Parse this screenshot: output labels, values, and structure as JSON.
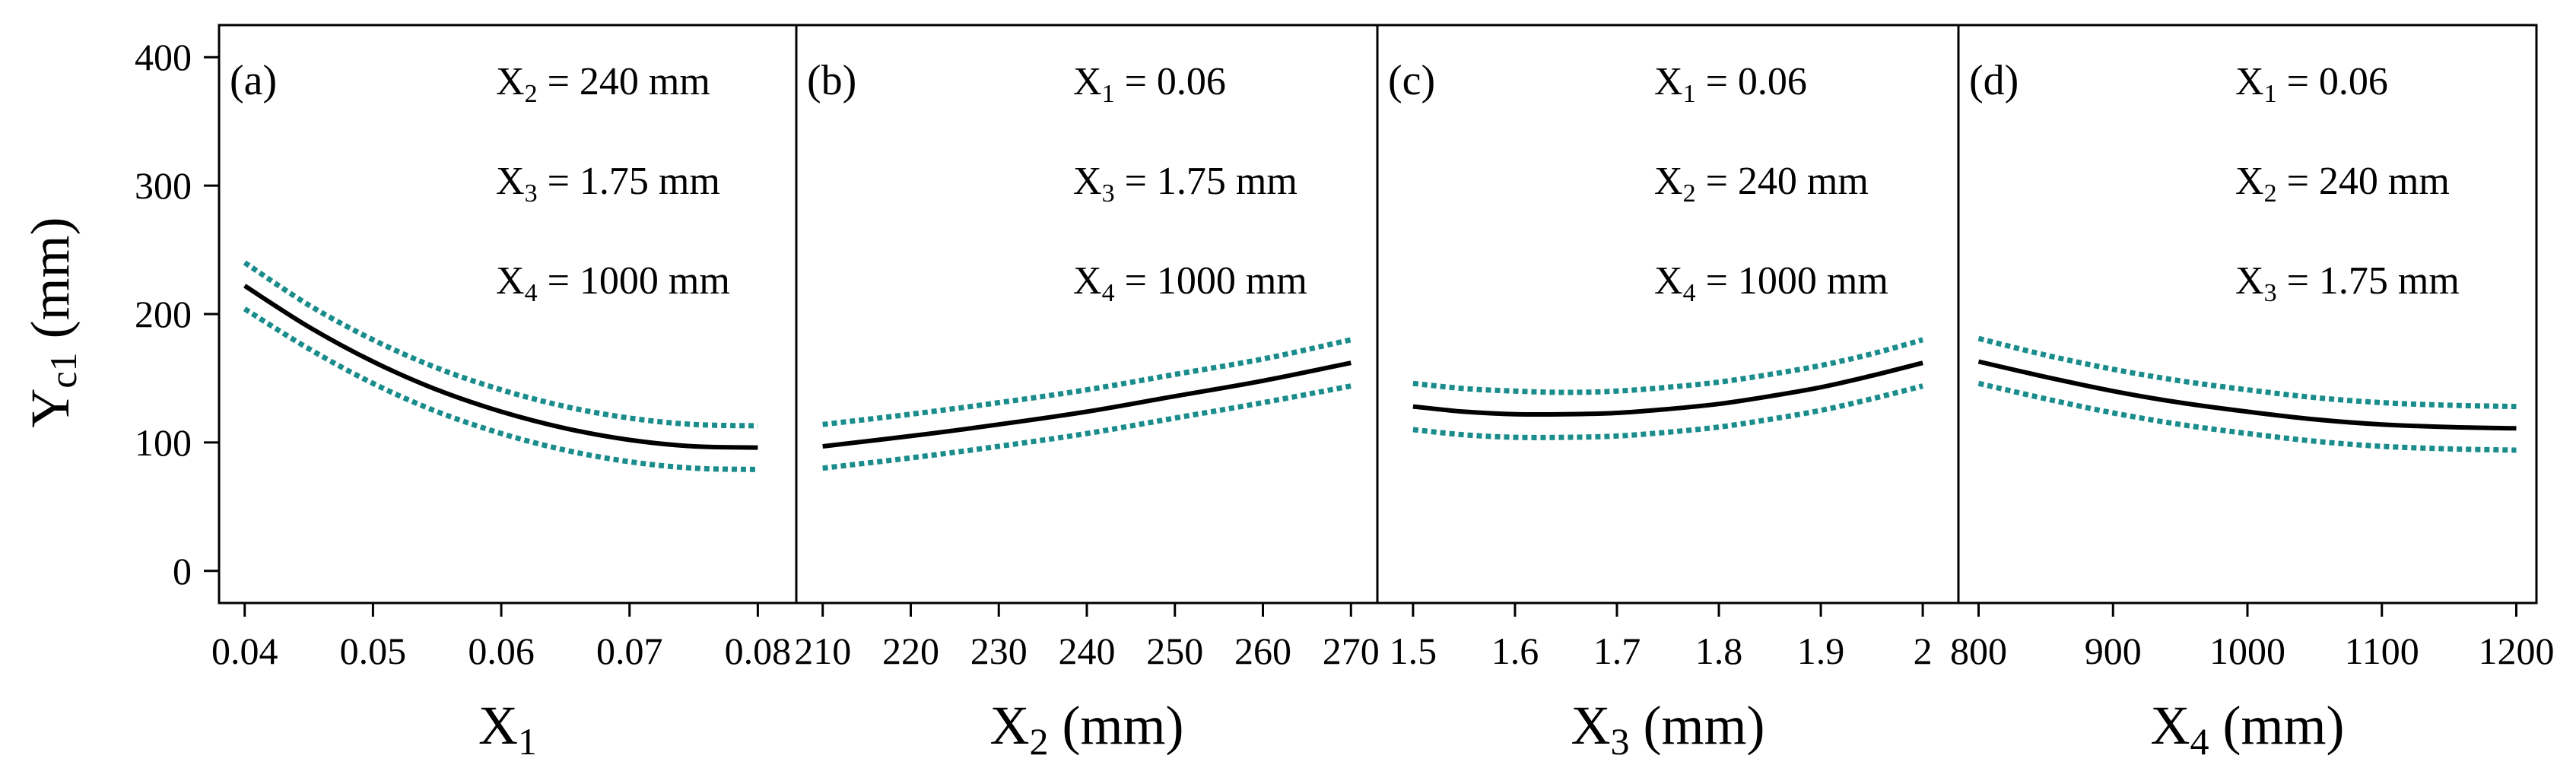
{
  "chart_data": [
    {
      "type": "line",
      "panel_label": "(a)",
      "xlabel": "X",
      "xlabel_sub": "1",
      "xlabel_unit": "",
      "ylabel": "Y",
      "ylabel_sub": "c1",
      "ylabel_unit": " (mm)",
      "xlim": [
        0.038,
        0.083
      ],
      "ylim": [
        -25,
        425
      ],
      "xticks": [
        0.04,
        0.05,
        0.06,
        0.07,
        0.08
      ],
      "xtick_labels": [
        "0.04",
        "0.05",
        "0.06",
        "0.07",
        "0.08"
      ],
      "yticks": [
        0,
        100,
        200,
        300,
        400
      ],
      "ytick_labels": [
        "0",
        "100",
        "200",
        "300",
        "400"
      ],
      "annotations": [
        {
          "var": "X",
          "sub": "2",
          "text": " = 240 mm"
        },
        {
          "var": "X",
          "sub": "3",
          "text": " = 1.75 mm"
        },
        {
          "var": "X",
          "sub": "4",
          "text": " = 1000 mm"
        }
      ],
      "series": [
        {
          "name": "predicted",
          "style": "solid",
          "color": "#000000",
          "x": [
            0.04,
            0.045,
            0.05,
            0.055,
            0.06,
            0.065,
            0.07,
            0.075,
            0.08
          ],
          "y": [
            222,
            190,
            163,
            141,
            124,
            111,
            102,
            97,
            96
          ]
        },
        {
          "name": "upper bound",
          "style": "dotted",
          "color": "#1a8c8c",
          "x": [
            0.04,
            0.045,
            0.05,
            0.055,
            0.06,
            0.065,
            0.07,
            0.075,
            0.08
          ],
          "y": [
            240,
            207,
            180,
            158,
            141,
            128,
            119,
            114,
            113
          ]
        },
        {
          "name": "lower bound",
          "style": "dotted",
          "color": "#1a8c8c",
          "x": [
            0.04,
            0.045,
            0.05,
            0.055,
            0.06,
            0.065,
            0.07,
            0.075,
            0.08
          ],
          "y": [
            204,
            173,
            146,
            124,
            107,
            94,
            85,
            80,
            79
          ]
        }
      ]
    },
    {
      "type": "line",
      "panel_label": "(b)",
      "xlabel": "X",
      "xlabel_sub": "2",
      "xlabel_unit": " (mm)",
      "xlim": [
        207,
        273
      ],
      "ylim": [
        -25,
        425
      ],
      "xticks": [
        210,
        220,
        230,
        240,
        250,
        260,
        270
      ],
      "xtick_labels": [
        "210",
        "220",
        "230",
        "240",
        "250",
        "260",
        "270"
      ],
      "annotations": [
        {
          "var": "X",
          "sub": "1",
          "text": " = 0.06"
        },
        {
          "var": "X",
          "sub": "3",
          "text": " = 1.75 mm"
        },
        {
          "var": "X",
          "sub": "4",
          "text": " = 1000 mm"
        }
      ],
      "series": [
        {
          "name": "predicted",
          "style": "solid",
          "color": "#000000",
          "x": [
            210,
            220,
            230,
            240,
            250,
            260,
            270
          ],
          "y": [
            97,
            105,
            114,
            124,
            136,
            148,
            162
          ]
        },
        {
          "name": "upper bound",
          "style": "dotted",
          "color": "#1a8c8c",
          "x": [
            210,
            220,
            230,
            240,
            250,
            260,
            270
          ],
          "y": [
            114,
            122,
            131,
            141,
            153,
            165,
            180
          ]
        },
        {
          "name": "lower bound",
          "style": "dotted",
          "color": "#1a8c8c",
          "x": [
            210,
            220,
            230,
            240,
            250,
            260,
            270
          ],
          "y": [
            80,
            88,
            97,
            107,
            119,
            131,
            144
          ]
        }
      ]
    },
    {
      "type": "line",
      "panel_label": "(c)",
      "xlabel": "X",
      "xlabel_sub": "3",
      "xlabel_unit": " (mm)",
      "xlim": [
        1.465,
        2.035
      ],
      "ylim": [
        -25,
        425
      ],
      "xticks": [
        1.5,
        1.6,
        1.7,
        1.8,
        1.9,
        2.0
      ],
      "xtick_labels": [
        "1.5",
        "1.6",
        "1.7",
        "1.8",
        "1.9",
        "2"
      ],
      "annotations": [
        {
          "var": "X",
          "sub": "1",
          "text": " = 0.06"
        },
        {
          "var": "X",
          "sub": "2",
          "text": " = 240 mm"
        },
        {
          "var": "X",
          "sub": "4",
          "text": " = 1000 mm"
        }
      ],
      "series": [
        {
          "name": "predicted",
          "style": "solid",
          "color": "#000000",
          "x": [
            1.5,
            1.55,
            1.6,
            1.65,
            1.7,
            1.75,
            1.8,
            1.85,
            1.9,
            1.95,
            2.0
          ],
          "y": [
            128,
            124,
            122,
            122,
            123,
            126,
            130,
            136,
            143,
            152,
            162
          ]
        },
        {
          "name": "upper bound",
          "style": "dotted",
          "color": "#1a8c8c",
          "x": [
            1.5,
            1.55,
            1.6,
            1.65,
            1.7,
            1.75,
            1.8,
            1.85,
            1.9,
            1.95,
            2.0
          ],
          "y": [
            146,
            142,
            140,
            139,
            140,
            143,
            147,
            153,
            160,
            169,
            180
          ]
        },
        {
          "name": "lower bound",
          "style": "dotted",
          "color": "#1a8c8c",
          "x": [
            1.5,
            1.55,
            1.6,
            1.65,
            1.7,
            1.75,
            1.8,
            1.85,
            1.9,
            1.95,
            2.0
          ],
          "y": [
            110,
            106,
            104,
            104,
            105,
            108,
            112,
            118,
            125,
            134,
            144
          ]
        }
      ]
    },
    {
      "type": "line",
      "panel_label": "(d)",
      "xlabel": "X",
      "xlabel_sub": "4",
      "xlabel_unit": " (mm)",
      "xlim": [
        785,
        1215
      ],
      "ylim": [
        -25,
        425
      ],
      "xticks": [
        800,
        900,
        1000,
        1100,
        1200
      ],
      "xtick_labels": [
        "800",
        "900",
        "1000",
        "1100",
        "1200"
      ],
      "annotations": [
        {
          "var": "X",
          "sub": "1",
          "text": " = 0.06"
        },
        {
          "var": "X",
          "sub": "2",
          "text": " = 240 mm"
        },
        {
          "var": "X",
          "sub": "3",
          "text": " = 1.75 mm"
        }
      ],
      "series": [
        {
          "name": "predicted",
          "style": "solid",
          "color": "#000000",
          "x": [
            800,
            850,
            900,
            950,
            1000,
            1050,
            1100,
            1150,
            1200
          ],
          "y": [
            163,
            151,
            140,
            131,
            124,
            118,
            114,
            112,
            111
          ]
        },
        {
          "name": "upper bound",
          "style": "dotted",
          "color": "#1a8c8c",
          "x": [
            800,
            850,
            900,
            950,
            1000,
            1050,
            1100,
            1150,
            1200
          ],
          "y": [
            181,
            168,
            157,
            148,
            141,
            135,
            131,
            129,
            128
          ]
        },
        {
          "name": "lower bound",
          "style": "dotted",
          "color": "#1a8c8c",
          "x": [
            800,
            850,
            900,
            950,
            1000,
            1050,
            1100,
            1150,
            1200
          ],
          "y": [
            146,
            134,
            123,
            114,
            107,
            101,
            97,
            95,
            94
          ]
        }
      ]
    }
  ]
}
